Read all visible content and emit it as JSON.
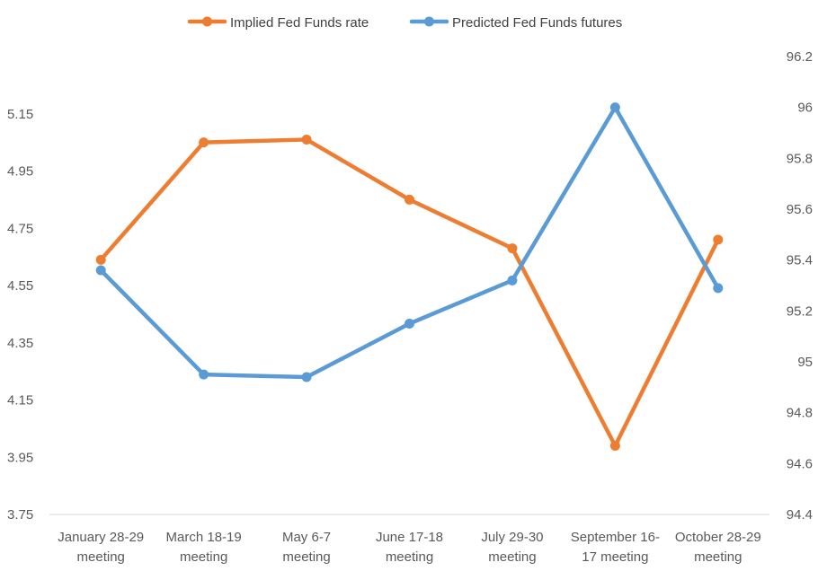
{
  "chart_data": {
    "type": "line",
    "categories": [
      [
        "January 28-29",
        "meeting"
      ],
      [
        "March 18-19",
        "meeting"
      ],
      [
        "May 6-7",
        "meeting"
      ],
      [
        "June 17-18",
        "meeting"
      ],
      [
        "July 29-30",
        "meeting"
      ],
      [
        "September 16-",
        "17 meeting"
      ],
      [
        "October 28-29",
        "meeting"
      ]
    ],
    "series": [
      {
        "name": "Implied Fed Funds rate",
        "axis": "left",
        "color": "#ed7d31",
        "values": [
          4.64,
          5.05,
          5.06,
          4.85,
          4.68,
          3.99,
          4.71
        ]
      },
      {
        "name": "Predicted Fed Funds futures",
        "axis": "right",
        "color": "#5b9bd5",
        "values": [
          95.36,
          94.95,
          94.94,
          95.15,
          95.32,
          96.0,
          95.29
        ]
      }
    ],
    "y_left": {
      "ylim": [
        3.75,
        5.35
      ],
      "ticks": [
        "3.75",
        "3.95",
        "4.15",
        "4.35",
        "4.55",
        "4.75",
        "4.95",
        "5.15"
      ]
    },
    "y_right": {
      "ylim": [
        94.4,
        96.2
      ],
      "ticks": [
        "94.4",
        "94.6",
        "94.8",
        "95",
        "95.2",
        "95.4",
        "95.6",
        "95.8",
        "96",
        "96.2"
      ]
    },
    "legend_position": "top-center",
    "grid": false
  }
}
